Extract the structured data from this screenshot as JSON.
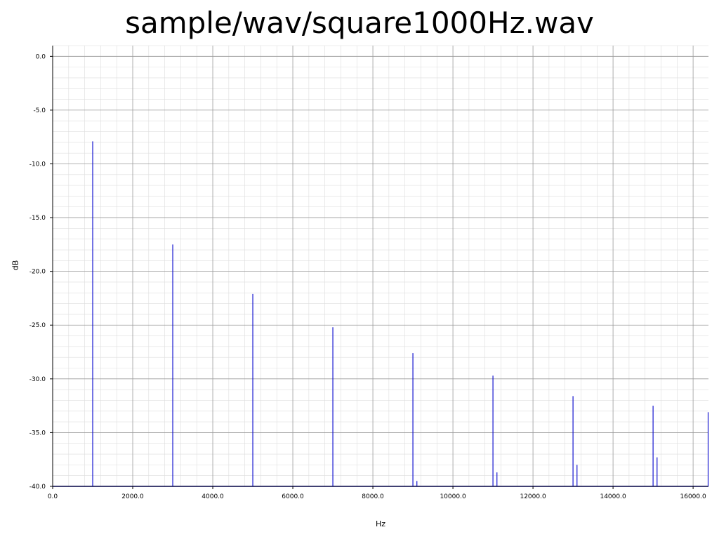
{
  "chart_data": {
    "type": "line",
    "title": "sample/wav/square1000Hz.wav",
    "xlabel": "Hz",
    "ylabel": "dB",
    "xlim": [
      0,
      16384
    ],
    "ylim": [
      -40,
      1
    ],
    "x_ticks": [
      "0.0",
      "2000.0",
      "4000.0",
      "6000.0",
      "8000.0",
      "10000.0",
      "12000.0",
      "14000.0",
      "16000.0"
    ],
    "y_ticks": [
      "0.0",
      "-5.0",
      "-10.0",
      "-15.0",
      "-20.0",
      "-25.0",
      "-30.0",
      "-35.0",
      "-40.0"
    ],
    "grid": true,
    "colors": {
      "series": "#0000cc",
      "major_grid": "#999999",
      "minor_grid": "#dddddd"
    },
    "series": [
      {
        "peaks": [
          {
            "x": 1000,
            "y": -7.9
          },
          {
            "x": 3000,
            "y": -17.5
          },
          {
            "x": 5000,
            "y": -22.1
          },
          {
            "x": 7000,
            "y": -25.2
          },
          {
            "x": 9000,
            "y": -27.6
          },
          {
            "x": 9100,
            "y": -39.5
          },
          {
            "x": 11000,
            "y": -29.7
          },
          {
            "x": 11100,
            "y": -38.7
          },
          {
            "x": 13000,
            "y": -31.6
          },
          {
            "x": 13100,
            "y": -38.0
          },
          {
            "x": 15000,
            "y": -32.5
          },
          {
            "x": 15100,
            "y": -37.3
          },
          {
            "x": 16384,
            "y": -33.1
          }
        ],
        "floor": -40
      }
    ]
  }
}
